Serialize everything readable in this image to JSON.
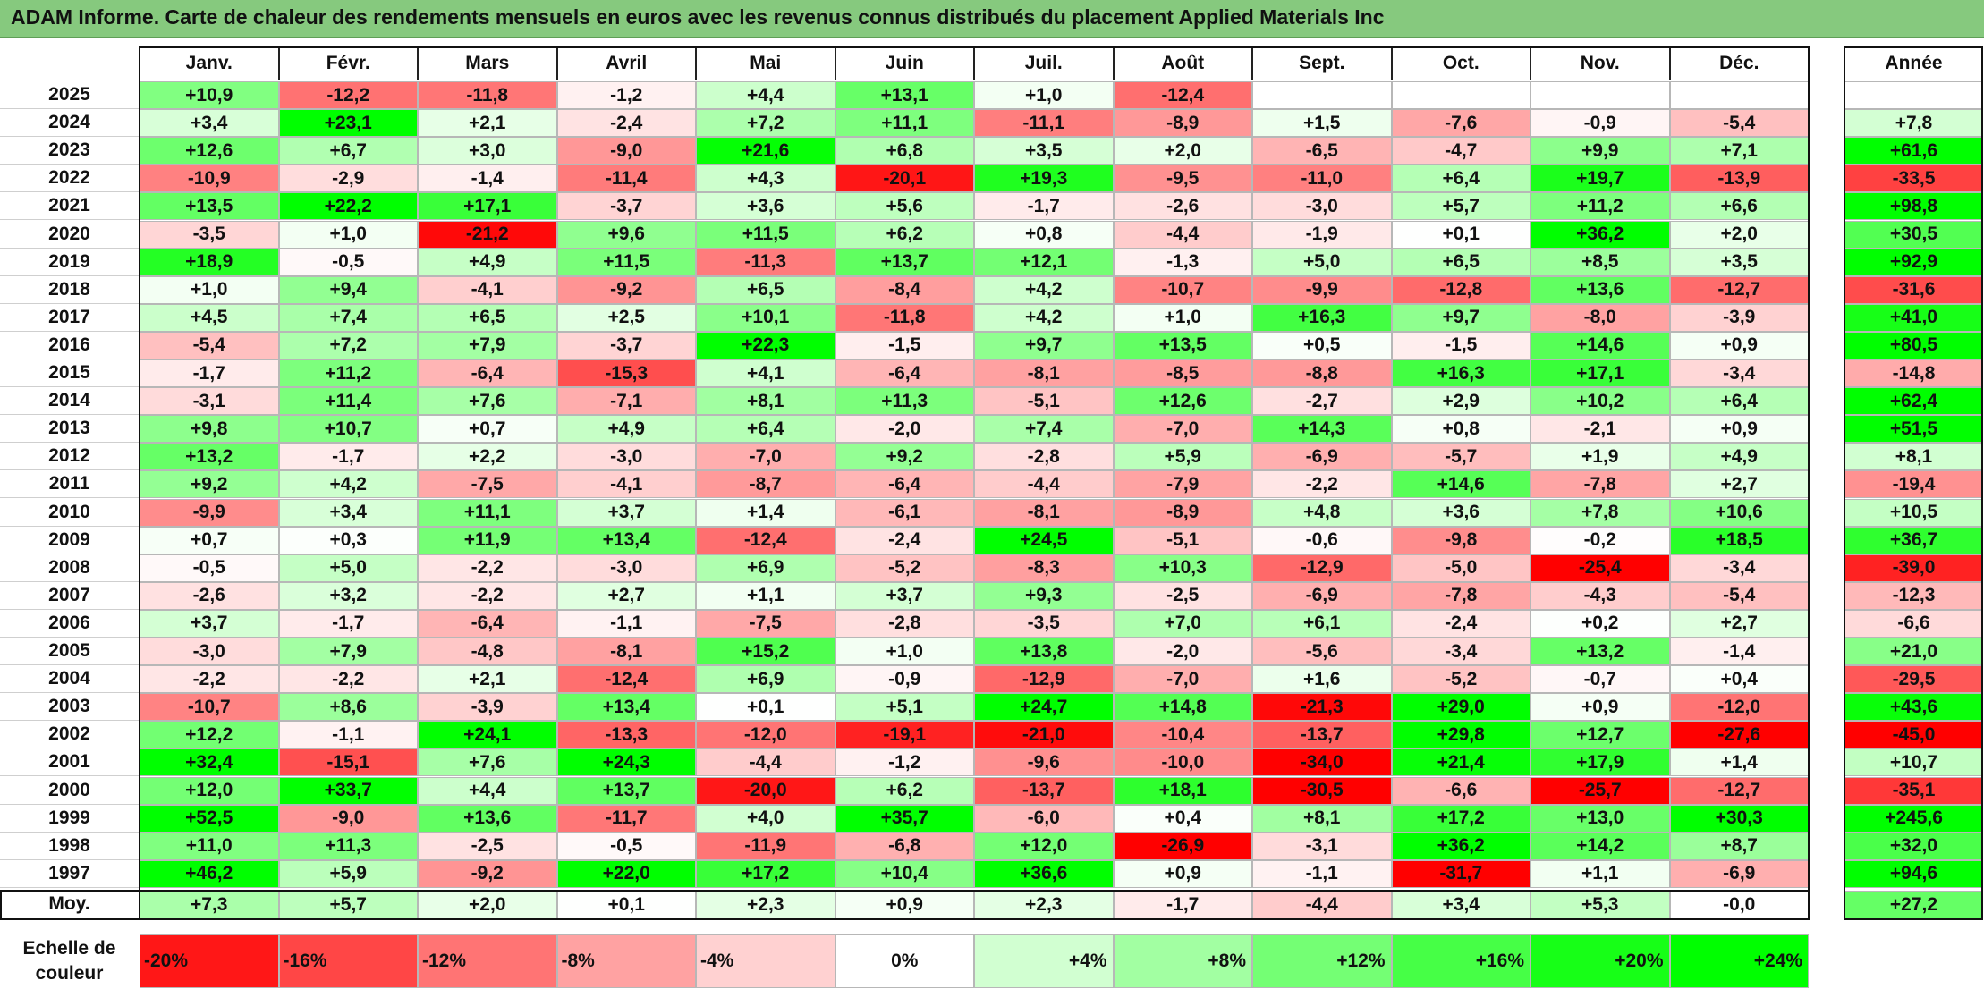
{
  "title": "ADAM Informe. Carte de chaleur des rendements mensuels en euros avec les revenus connus distribués du placement Applied Materials Inc",
  "months": [
    "Janv.",
    "Févr.",
    "Mars",
    "Avril",
    "Mai",
    "Juin",
    "Juil.",
    "Août",
    "Sept.",
    "Oct.",
    "Nov.",
    "Déc."
  ],
  "year_header": "Année",
  "average_label": "Moy.",
  "scale_label": "Echelle de couleur",
  "colors": {
    "negative_max": "#ff0000",
    "neutral": "#ffffff",
    "positive_max": "#00ff00",
    "title_bar": "#86c97e"
  },
  "chart_data": {
    "type": "heatmap",
    "title": "ADAM Informe. Carte de chaleur des rendements mensuels en euros avec les revenus connus distribués du placement Applied Materials Inc",
    "x_categories": [
      "Janv.",
      "Févr.",
      "Mars",
      "Avril",
      "Mai",
      "Juin",
      "Juil.",
      "Août",
      "Sept.",
      "Oct.",
      "Nov.",
      "Déc."
    ],
    "rows": [
      {
        "year": "2025",
        "values": [
          "+10,9",
          "-12,2",
          "-11,8",
          "-1,2",
          "+4,4",
          "+13,1",
          "+1,0",
          "-12,4",
          "",
          "",
          "",
          ""
        ],
        "annual": ""
      },
      {
        "year": "2024",
        "values": [
          "+3,4",
          "+23,1",
          "+2,1",
          "-2,4",
          "+7,2",
          "+11,1",
          "-11,1",
          "-8,9",
          "+1,5",
          "-7,6",
          "-0,9",
          "-5,4"
        ],
        "annual": "+7,8"
      },
      {
        "year": "2023",
        "values": [
          "+12,6",
          "+6,7",
          "+3,0",
          "-9,0",
          "+21,6",
          "+6,8",
          "+3,5",
          "+2,0",
          "-6,5",
          "-4,7",
          "+9,9",
          "+7,1"
        ],
        "annual": "+61,6"
      },
      {
        "year": "2022",
        "values": [
          "-10,9",
          "-2,9",
          "-1,4",
          "-11,4",
          "+4,3",
          "-20,1",
          "+19,3",
          "-9,5",
          "-11,0",
          "+6,4",
          "+19,7",
          "-13,9"
        ],
        "annual": "-33,5"
      },
      {
        "year": "2021",
        "values": [
          "+13,5",
          "+22,2",
          "+17,1",
          "-3,7",
          "+3,6",
          "+5,6",
          "-1,7",
          "-2,6",
          "-3,0",
          "+5,7",
          "+11,2",
          "+6,6"
        ],
        "annual": "+98,8"
      },
      {
        "year": "2020",
        "values": [
          "-3,5",
          "+1,0",
          "-21,2",
          "+9,6",
          "+11,5",
          "+6,2",
          "+0,8",
          "-4,4",
          "-1,9",
          "+0,1",
          "+36,2",
          "+2,0"
        ],
        "annual": "+30,5"
      },
      {
        "year": "2019",
        "values": [
          "+18,9",
          "-0,5",
          "+4,9",
          "+11,5",
          "-11,3",
          "+13,7",
          "+12,1",
          "-1,3",
          "+5,0",
          "+6,5",
          "+8,5",
          "+3,5"
        ],
        "annual": "+92,9"
      },
      {
        "year": "2018",
        "values": [
          "+1,0",
          "+9,4",
          "-4,1",
          "-9,2",
          "+6,5",
          "-8,4",
          "+4,2",
          "-10,7",
          "-9,9",
          "-12,8",
          "+13,6",
          "-12,7"
        ],
        "annual": "-31,6"
      },
      {
        "year": "2017",
        "values": [
          "+4,5",
          "+7,4",
          "+6,5",
          "+2,5",
          "+10,1",
          "-11,8",
          "+4,2",
          "+1,0",
          "+16,3",
          "+9,7",
          "-8,0",
          "-3,9"
        ],
        "annual": "+41,0"
      },
      {
        "year": "2016",
        "values": [
          "-5,4",
          "+7,2",
          "+7,9",
          "-3,7",
          "+22,3",
          "-1,5",
          "+9,7",
          "+13,5",
          "+0,5",
          "-1,5",
          "+14,6",
          "+0,9"
        ],
        "annual": "+80,5"
      },
      {
        "year": "2015",
        "values": [
          "-1,7",
          "+11,2",
          "-6,4",
          "-15,3",
          "+4,1",
          "-6,4",
          "-8,1",
          "-8,5",
          "-8,8",
          "+16,3",
          "+17,1",
          "-3,4"
        ],
        "annual": "-14,8"
      },
      {
        "year": "2014",
        "values": [
          "-3,1",
          "+11,4",
          "+7,6",
          "-7,1",
          "+8,1",
          "+11,3",
          "-5,1",
          "+12,6",
          "-2,7",
          "+2,9",
          "+10,2",
          "+6,4"
        ],
        "annual": "+62,4"
      },
      {
        "year": "2013",
        "values": [
          "+9,8",
          "+10,7",
          "+0,7",
          "+4,9",
          "+6,4",
          "-2,0",
          "+7,4",
          "-7,0",
          "+14,3",
          "+0,8",
          "-2,1",
          "+0,9"
        ],
        "annual": "+51,5"
      },
      {
        "year": "2012",
        "values": [
          "+13,2",
          "-1,7",
          "+2,2",
          "-3,0",
          "-7,0",
          "+9,2",
          "-2,8",
          "+5,9",
          "-6,9",
          "-5,7",
          "+1,9",
          "+4,9"
        ],
        "annual": "+8,1"
      },
      {
        "year": "2011",
        "values": [
          "+9,2",
          "+4,2",
          "-7,5",
          "-4,1",
          "-8,7",
          "-6,4",
          "-4,4",
          "-7,9",
          "-2,2",
          "+14,6",
          "-7,8",
          "+2,7"
        ],
        "annual": "-19,4"
      },
      {
        "year": "2010",
        "values": [
          "-9,9",
          "+3,4",
          "+11,1",
          "+3,7",
          "+1,4",
          "-6,1",
          "-8,1",
          "-8,9",
          "+4,8",
          "+3,6",
          "+7,8",
          "+10,6"
        ],
        "annual": "+10,5"
      },
      {
        "year": "2009",
        "values": [
          "+0,7",
          "+0,3",
          "+11,9",
          "+13,4",
          "-12,4",
          "-2,4",
          "+24,5",
          "-5,1",
          "-0,6",
          "-9,8",
          "-0,2",
          "+18,5"
        ],
        "annual": "+36,7"
      },
      {
        "year": "2008",
        "values": [
          "-0,5",
          "+5,0",
          "-2,2",
          "-3,0",
          "+6,9",
          "-5,2",
          "-8,3",
          "+10,3",
          "-12,9",
          "-5,0",
          "-25,4",
          "-3,4"
        ],
        "annual": "-39,0"
      },
      {
        "year": "2007",
        "values": [
          "-2,6",
          "+3,2",
          "-2,2",
          "+2,7",
          "+1,1",
          "+3,7",
          "+9,3",
          "-2,5",
          "-6,9",
          "-7,8",
          "-4,3",
          "-5,4"
        ],
        "annual": "-12,3"
      },
      {
        "year": "2006",
        "values": [
          "+3,7",
          "-1,7",
          "-6,4",
          "-1,1",
          "-7,5",
          "-2,8",
          "-3,5",
          "+7,0",
          "+6,1",
          "-2,4",
          "+0,2",
          "+2,7"
        ],
        "annual": "-6,6"
      },
      {
        "year": "2005",
        "values": [
          "-3,0",
          "+7,9",
          "-4,8",
          "-8,1",
          "+15,2",
          "+1,0",
          "+13,8",
          "-2,0",
          "-5,6",
          "-3,4",
          "+13,2",
          "-1,4"
        ],
        "annual": "+21,0"
      },
      {
        "year": "2004",
        "values": [
          "-2,2",
          "-2,2",
          "+2,1",
          "-12,4",
          "+6,9",
          "-0,9",
          "-12,9",
          "-7,0",
          "+1,6",
          "-5,2",
          "-0,7",
          "+0,4"
        ],
        "annual": "-29,5"
      },
      {
        "year": "2003",
        "values": [
          "-10,7",
          "+8,6",
          "-3,9",
          "+13,4",
          "+0,1",
          "+5,1",
          "+24,7",
          "+14,8",
          "-21,3",
          "+29,0",
          "+0,9",
          "-12,0"
        ],
        "annual": "+43,6"
      },
      {
        "year": "2002",
        "values": [
          "+12,2",
          "-1,1",
          "+24,1",
          "-13,3",
          "-12,0",
          "-19,1",
          "-21,0",
          "-10,4",
          "-13,7",
          "+29,8",
          "+12,7",
          "-27,6"
        ],
        "annual": "-45,0"
      },
      {
        "year": "2001",
        "values": [
          "+32,4",
          "-15,1",
          "+7,6",
          "+24,3",
          "-4,4",
          "-1,2",
          "-9,6",
          "-10,0",
          "-34,0",
          "+21,4",
          "+17,9",
          "+1,4"
        ],
        "annual": "+10,7"
      },
      {
        "year": "2000",
        "values": [
          "+12,0",
          "+33,7",
          "+4,4",
          "+13,7",
          "-20,0",
          "+6,2",
          "-13,7",
          "+18,1",
          "-30,5",
          "-6,6",
          "-25,7",
          "-12,7"
        ],
        "annual": "-35,1"
      },
      {
        "year": "1999",
        "values": [
          "+52,5",
          "-9,0",
          "+13,6",
          "-11,7",
          "+4,0",
          "+35,7",
          "-6,0",
          "+0,4",
          "+8,1",
          "+17,2",
          "+13,0",
          "+30,3"
        ],
        "annual": "+245,6"
      },
      {
        "year": "1998",
        "values": [
          "+11,0",
          "+11,3",
          "-2,5",
          "-0,5",
          "-11,9",
          "-6,8",
          "+12,0",
          "-26,9",
          "-3,1",
          "+36,2",
          "+14,2",
          "+8,7"
        ],
        "annual": "+32,0"
      },
      {
        "year": "1997",
        "values": [
          "+46,2",
          "+5,9",
          "-9,2",
          "+22,0",
          "+17,2",
          "+10,4",
          "+36,6",
          "+0,9",
          "-1,1",
          "-31,7",
          "+1,1",
          "-6,9"
        ],
        "annual": "+94,6"
      }
    ],
    "averages": {
      "label": "Moy.",
      "values": [
        "+7,3",
        "+5,7",
        "+2,0",
        "+0,1",
        "+2,3",
        "+0,9",
        "+2,3",
        "-1,7",
        "-4,4",
        "+3,4",
        "+5,3",
        "-0,0"
      ],
      "annual": "+27,2"
    },
    "color_scale": {
      "label": "Echelle de couleur",
      "stops": [
        {
          "label": "-20%",
          "value": -20
        },
        {
          "label": "-16%",
          "value": -16
        },
        {
          "label": "-12%",
          "value": -12
        },
        {
          "label": "-8%",
          "value": -8
        },
        {
          "label": "-4%",
          "value": -4
        },
        {
          "label": "0%",
          "value": 0
        },
        {
          "label": "+4%",
          "value": 4
        },
        {
          "label": "+8%",
          "value": 8
        },
        {
          "label": "+12%",
          "value": 12
        },
        {
          "label": "+16%",
          "value": 16
        },
        {
          "label": "+20%",
          "value": 20
        },
        {
          "label": "+24%",
          "value": 24
        }
      ]
    }
  }
}
